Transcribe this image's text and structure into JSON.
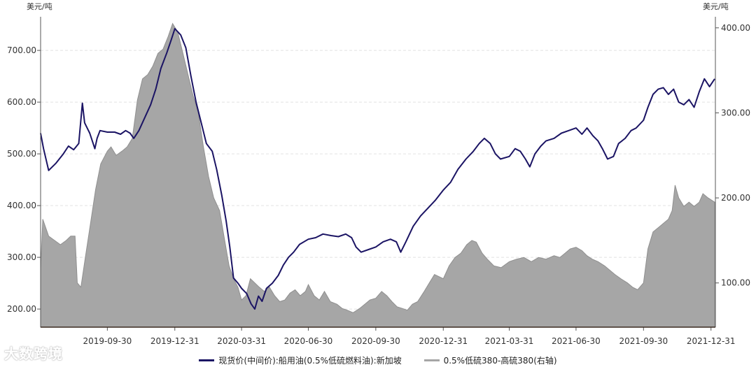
{
  "chart_data": {
    "type": "line",
    "title": "",
    "left_unit": "美元/吨",
    "right_unit": "美元/吨",
    "left_axis": {
      "min": 165,
      "max": 765,
      "ticks": [
        200,
        300,
        400,
        500,
        600,
        700
      ],
      "tick_labels": [
        "200.00",
        "300.00",
        "400.00",
        "500.00",
        "600.00",
        "700.00"
      ]
    },
    "right_axis": {
      "min": 48,
      "max": 413,
      "ticks": [
        100,
        200,
        300,
        400
      ],
      "tick_labels": [
        "100.00",
        "200.00",
        "300.00",
        "400.00"
      ]
    },
    "x_axis": {
      "min": "2019-07-01",
      "max": "2022-01-06",
      "ticks": [
        "2019-09-30",
        "2019-12-31",
        "2020-03-31",
        "2020-06-30",
        "2020-09-30",
        "2020-12-31",
        "2021-03-31",
        "2021-06-30",
        "2021-09-30",
        "2021-12-31"
      ]
    },
    "grid": true,
    "series": [
      {
        "name": "现货价(中间价):船用油(0.5%低硫燃料油):新加坡",
        "type": "line",
        "axis": "left",
        "color": "#1b1464",
        "points": [
          [
            "2019-07-01",
            540
          ],
          [
            "2019-07-05",
            510
          ],
          [
            "2019-07-12",
            468
          ],
          [
            "2019-07-22",
            482
          ],
          [
            "2019-08-01",
            500
          ],
          [
            "2019-08-08",
            515
          ],
          [
            "2019-08-15",
            508
          ],
          [
            "2019-08-22",
            520
          ],
          [
            "2019-08-27",
            598
          ],
          [
            "2019-08-30",
            560
          ],
          [
            "2019-09-06",
            540
          ],
          [
            "2019-09-13",
            510
          ],
          [
            "2019-09-16",
            530
          ],
          [
            "2019-09-20",
            545
          ],
          [
            "2019-09-30",
            542
          ],
          [
            "2019-10-10",
            542
          ],
          [
            "2019-10-18",
            538
          ],
          [
            "2019-10-25",
            545
          ],
          [
            "2019-10-31",
            540
          ],
          [
            "2019-11-05",
            530
          ],
          [
            "2019-11-12",
            545
          ],
          [
            "2019-11-20",
            570
          ],
          [
            "2019-11-28",
            595
          ],
          [
            "2019-12-05",
            625
          ],
          [
            "2019-12-12",
            665
          ],
          [
            "2019-12-20",
            695
          ],
          [
            "2019-12-26",
            720
          ],
          [
            "2019-12-31",
            742
          ],
          [
            "2020-01-08",
            730
          ],
          [
            "2020-01-15",
            705
          ],
          [
            "2020-01-22",
            650
          ],
          [
            "2020-01-29",
            600
          ],
          [
            "2020-02-05",
            560
          ],
          [
            "2020-02-12",
            520
          ],
          [
            "2020-02-20",
            505
          ],
          [
            "2020-02-26",
            470
          ],
          [
            "2020-03-04",
            420
          ],
          [
            "2020-03-10",
            370
          ],
          [
            "2020-03-15",
            320
          ],
          [
            "2020-03-20",
            260
          ],
          [
            "2020-03-26",
            250
          ],
          [
            "2020-03-31",
            240
          ],
          [
            "2020-04-07",
            230
          ],
          [
            "2020-04-13",
            210
          ],
          [
            "2020-04-18",
            200
          ],
          [
            "2020-04-23",
            225
          ],
          [
            "2020-04-28",
            215
          ],
          [
            "2020-05-04",
            240
          ],
          [
            "2020-05-12",
            250
          ],
          [
            "2020-05-20",
            265
          ],
          [
            "2020-05-27",
            285
          ],
          [
            "2020-06-03",
            300
          ],
          [
            "2020-06-10",
            310
          ],
          [
            "2020-06-18",
            325
          ],
          [
            "2020-06-30",
            335
          ],
          [
            "2020-07-10",
            338
          ],
          [
            "2020-07-20",
            345
          ],
          [
            "2020-07-31",
            342
          ],
          [
            "2020-08-10",
            340
          ],
          [
            "2020-08-20",
            345
          ],
          [
            "2020-08-28",
            338
          ],
          [
            "2020-09-03",
            320
          ],
          [
            "2020-09-10",
            310
          ],
          [
            "2020-09-20",
            315
          ],
          [
            "2020-09-30",
            320
          ],
          [
            "2020-10-10",
            330
          ],
          [
            "2020-10-20",
            335
          ],
          [
            "2020-10-28",
            330
          ],
          [
            "2020-11-03",
            310
          ],
          [
            "2020-11-10",
            330
          ],
          [
            "2020-11-20",
            360
          ],
          [
            "2020-11-30",
            380
          ],
          [
            "2020-12-10",
            395
          ],
          [
            "2020-12-20",
            410
          ],
          [
            "2020-12-31",
            430
          ],
          [
            "2021-01-10",
            445
          ],
          [
            "2021-01-20",
            470
          ],
          [
            "2021-01-31",
            490
          ],
          [
            "2021-02-10",
            505
          ],
          [
            "2021-02-18",
            520
          ],
          [
            "2021-02-25",
            530
          ],
          [
            "2021-03-05",
            520
          ],
          [
            "2021-03-12",
            500
          ],
          [
            "2021-03-19",
            490
          ],
          [
            "2021-03-31",
            495
          ],
          [
            "2021-04-08",
            510
          ],
          [
            "2021-04-15",
            505
          ],
          [
            "2021-04-22",
            490
          ],
          [
            "2021-04-28",
            475
          ],
          [
            "2021-05-05",
            500
          ],
          [
            "2021-05-13",
            515
          ],
          [
            "2021-05-20",
            525
          ],
          [
            "2021-05-31",
            530
          ],
          [
            "2021-06-10",
            540
          ],
          [
            "2021-06-20",
            545
          ],
          [
            "2021-06-30",
            550
          ],
          [
            "2021-07-08",
            538
          ],
          [
            "2021-07-15",
            550
          ],
          [
            "2021-07-23",
            535
          ],
          [
            "2021-07-30",
            525
          ],
          [
            "2021-08-05",
            510
          ],
          [
            "2021-08-12",
            490
          ],
          [
            "2021-08-20",
            495
          ],
          [
            "2021-08-27",
            520
          ],
          [
            "2021-09-05",
            530
          ],
          [
            "2021-09-13",
            545
          ],
          [
            "2021-09-20",
            550
          ],
          [
            "2021-09-30",
            565
          ],
          [
            "2021-10-06",
            590
          ],
          [
            "2021-10-13",
            615
          ],
          [
            "2021-10-20",
            625
          ],
          [
            "2021-10-27",
            628
          ],
          [
            "2021-11-03",
            615
          ],
          [
            "2021-11-10",
            625
          ],
          [
            "2021-11-17",
            600
          ],
          [
            "2021-11-24",
            595
          ],
          [
            "2021-12-01",
            605
          ],
          [
            "2021-12-08",
            590
          ],
          [
            "2021-12-15",
            620
          ],
          [
            "2021-12-22",
            645
          ],
          [
            "2021-12-29",
            630
          ],
          [
            "2022-01-05",
            645
          ]
        ]
      },
      {
        "name": "0.5%低硫380-高硫380(右轴)",
        "type": "area",
        "axis": "right",
        "color": "#a6a6a6",
        "points": [
          [
            "2019-07-01",
            115
          ],
          [
            "2019-07-04",
            175
          ],
          [
            "2019-07-12",
            155
          ],
          [
            "2019-07-20",
            150
          ],
          [
            "2019-07-28",
            145
          ],
          [
            "2019-08-05",
            150
          ],
          [
            "2019-08-11",
            155
          ],
          [
            "2019-08-17",
            155
          ],
          [
            "2019-08-20",
            100
          ],
          [
            "2019-08-25",
            95
          ],
          [
            "2019-08-31",
            130
          ],
          [
            "2019-09-07",
            170
          ],
          [
            "2019-09-14",
            210
          ],
          [
            "2019-09-21",
            240
          ],
          [
            "2019-09-30",
            255
          ],
          [
            "2019-10-05",
            260
          ],
          [
            "2019-10-12",
            250
          ],
          [
            "2019-10-20",
            255
          ],
          [
            "2019-10-27",
            260
          ],
          [
            "2019-11-03",
            270
          ],
          [
            "2019-11-10",
            315
          ],
          [
            "2019-11-17",
            340
          ],
          [
            "2019-11-24",
            345
          ],
          [
            "2019-12-01",
            355
          ],
          [
            "2019-12-08",
            370
          ],
          [
            "2019-12-15",
            375
          ],
          [
            "2019-12-22",
            390
          ],
          [
            "2019-12-28",
            405
          ],
          [
            "2020-01-04",
            395
          ],
          [
            "2020-01-11",
            370
          ],
          [
            "2020-01-18",
            345
          ],
          [
            "2020-01-25",
            320
          ],
          [
            "2020-02-01",
            300
          ],
          [
            "2020-02-08",
            260
          ],
          [
            "2020-02-15",
            225
          ],
          [
            "2020-02-22",
            200
          ],
          [
            "2020-03-01",
            185
          ],
          [
            "2020-03-08",
            150
          ],
          [
            "2020-03-14",
            120
          ],
          [
            "2020-03-20",
            105
          ],
          [
            "2020-03-26",
            95
          ],
          [
            "2020-03-31",
            80
          ],
          [
            "2020-04-06",
            85
          ],
          [
            "2020-04-12",
            105
          ],
          [
            "2020-04-18",
            100
          ],
          [
            "2020-04-24",
            95
          ],
          [
            "2020-05-01",
            90
          ],
          [
            "2020-05-08",
            95
          ],
          [
            "2020-05-15",
            85
          ],
          [
            "2020-05-22",
            78
          ],
          [
            "2020-05-29",
            80
          ],
          [
            "2020-06-05",
            88
          ],
          [
            "2020-06-12",
            92
          ],
          [
            "2020-06-19",
            85
          ],
          [
            "2020-06-26",
            90
          ],
          [
            "2020-06-30",
            98
          ],
          [
            "2020-07-08",
            85
          ],
          [
            "2020-07-15",
            80
          ],
          [
            "2020-07-22",
            90
          ],
          [
            "2020-07-30",
            78
          ],
          [
            "2020-08-08",
            75
          ],
          [
            "2020-08-15",
            70
          ],
          [
            "2020-08-22",
            68
          ],
          [
            "2020-08-30",
            65
          ],
          [
            "2020-09-08",
            70
          ],
          [
            "2020-09-15",
            75
          ],
          [
            "2020-09-22",
            80
          ],
          [
            "2020-09-30",
            82
          ],
          [
            "2020-10-08",
            90
          ],
          [
            "2020-10-15",
            85
          ],
          [
            "2020-10-22",
            78
          ],
          [
            "2020-10-29",
            72
          ],
          [
            "2020-11-05",
            70
          ],
          [
            "2020-11-12",
            68
          ],
          [
            "2020-11-19",
            75
          ],
          [
            "2020-11-26",
            78
          ],
          [
            "2020-12-05",
            90
          ],
          [
            "2020-12-12",
            100
          ],
          [
            "2020-12-19",
            110
          ],
          [
            "2020-12-31",
            105
          ],
          [
            "2021-01-08",
            120
          ],
          [
            "2021-01-16",
            130
          ],
          [
            "2021-01-24",
            135
          ],
          [
            "2021-02-01",
            145
          ],
          [
            "2021-02-08",
            150
          ],
          [
            "2021-02-14",
            148
          ],
          [
            "2021-02-22",
            135
          ],
          [
            "2021-03-01",
            128
          ],
          [
            "2021-03-10",
            120
          ],
          [
            "2021-03-20",
            118
          ],
          [
            "2021-03-31",
            125
          ],
          [
            "2021-04-10",
            128
          ],
          [
            "2021-04-20",
            130
          ],
          [
            "2021-04-30",
            125
          ],
          [
            "2021-05-10",
            130
          ],
          [
            "2021-05-20",
            128
          ],
          [
            "2021-05-31",
            132
          ],
          [
            "2021-06-08",
            130
          ],
          [
            "2021-06-15",
            135
          ],
          [
            "2021-06-22",
            140
          ],
          [
            "2021-06-30",
            142
          ],
          [
            "2021-07-08",
            138
          ],
          [
            "2021-07-15",
            132
          ],
          [
            "2021-07-22",
            128
          ],
          [
            "2021-07-30",
            125
          ],
          [
            "2021-08-08",
            120
          ],
          [
            "2021-08-15",
            115
          ],
          [
            "2021-08-22",
            110
          ],
          [
            "2021-08-30",
            105
          ],
          [
            "2021-09-08",
            100
          ],
          [
            "2021-09-15",
            95
          ],
          [
            "2021-09-22",
            92
          ],
          [
            "2021-09-30",
            100
          ],
          [
            "2021-10-06",
            140
          ],
          [
            "2021-10-13",
            160
          ],
          [
            "2021-10-20",
            165
          ],
          [
            "2021-10-27",
            170
          ],
          [
            "2021-11-03",
            175
          ],
          [
            "2021-11-08",
            185
          ],
          [
            "2021-11-12",
            215
          ],
          [
            "2021-11-17",
            200
          ],
          [
            "2021-11-24",
            190
          ],
          [
            "2021-12-01",
            195
          ],
          [
            "2021-12-08",
            190
          ],
          [
            "2021-12-15",
            195
          ],
          [
            "2021-12-20",
            205
          ],
          [
            "2021-12-27",
            200
          ],
          [
            "2022-01-05",
            195
          ]
        ]
      }
    ]
  },
  "legend": {
    "line_label": "现货价(中间价):船用油(0.5%低硫燃料油):新加坡",
    "area_label": "0.5%低硫380-高硫380(右轴)"
  },
  "watermark": "大数跨境"
}
